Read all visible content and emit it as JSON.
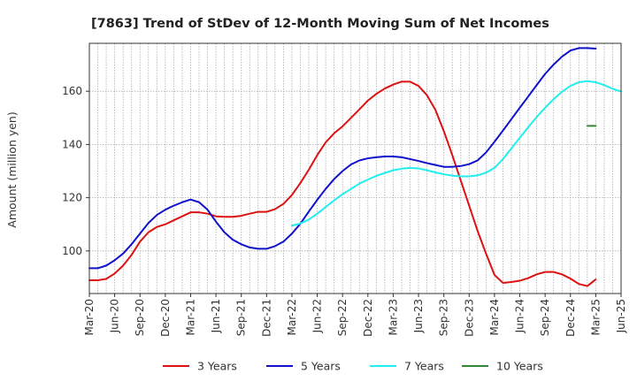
{
  "chart_data": {
    "type": "line",
    "title": "[7863]  Trend of StDev of 12-Month Moving Sum of Net Incomes",
    "xlabel": "",
    "ylabel": "Amount (million yen)",
    "ylim": [
      84,
      178
    ],
    "yticks": [
      100,
      120,
      140,
      160
    ],
    "xticks": [
      "Mar-20",
      "Jun-20",
      "Sep-20",
      "Dec-20",
      "Mar-21",
      "Jun-21",
      "Sep-21",
      "Dec-21",
      "Mar-22",
      "Jun-22",
      "Sep-22",
      "Dec-22",
      "Mar-23",
      "Jun-23",
      "Sep-23",
      "Dec-23",
      "Mar-24",
      "Jun-24",
      "Sep-24",
      "Dec-24",
      "Mar-25",
      "Jun-25"
    ],
    "x_range_months": [
      "2020-03",
      "2025-06"
    ],
    "grid": true,
    "legend_position": "bottom",
    "series": [
      {
        "name": "3 Years",
        "color": "#dd1111",
        "start": "2020-03",
        "values": [
          89,
          89,
          89.5,
          91.5,
          94.5,
          98.5,
          103.5,
          107,
          109,
          110,
          111.5,
          113,
          114.5,
          114.5,
          114,
          113,
          112.8,
          112.8,
          113.2,
          114,
          114.7,
          114.7,
          115.7,
          117.7,
          121,
          125.5,
          130.5,
          136,
          140.8,
          144.2,
          146.8,
          150,
          153.2,
          156.5,
          159,
          161,
          162.5,
          163.6,
          163.6,
          162,
          158.5,
          153,
          145,
          136,
          126.5,
          117,
          107.5,
          99,
          91,
          88,
          88.3,
          88.8,
          89.8,
          91.2,
          92.1,
          92.1,
          91.2,
          89.6,
          87.6,
          86.8,
          89.3
        ]
      },
      {
        "name": "5 Years",
        "color": "#1111cc",
        "start": "2020-03",
        "values": [
          93.5,
          93.5,
          94.5,
          96.5,
          99,
          102.5,
          106.5,
          110.5,
          113.5,
          115.5,
          117,
          118.3,
          119.3,
          118.3,
          115.5,
          111,
          107,
          104.2,
          102.5,
          101.3,
          100.8,
          100.8,
          101.8,
          103.5,
          106.5,
          110.2,
          114.8,
          119.2,
          123.3,
          127,
          130,
          132.5,
          134,
          134.8,
          135.2,
          135.5,
          135.5,
          135.2,
          134.5,
          133.8,
          133,
          132.3,
          131.6,
          131.6,
          131.9,
          132.6,
          134,
          137,
          141,
          145.2,
          149.5,
          153.8,
          158,
          162.3,
          166.5,
          170,
          173,
          175.3,
          176.2,
          176.2,
          176
        ]
      },
      {
        "name": "7 Years",
        "color": "#22eeee",
        "start": "2022-03",
        "values": [
          109.5,
          110.3,
          111.8,
          114,
          116.5,
          119,
          121.3,
          123.3,
          125.3,
          126.8,
          128.2,
          129.3,
          130.3,
          130.9,
          131.2,
          131,
          130.3,
          129.5,
          128.8,
          128.3,
          128,
          128,
          128.4,
          129.4,
          131.2,
          134.5,
          138.5,
          142.5,
          146.5,
          150.3,
          153.8,
          157,
          159.8,
          162,
          163.4,
          163.8,
          163.4,
          162.3,
          160.9,
          159.9
        ]
      },
      {
        "name": "10 Years",
        "color": "#338833",
        "start": "2025-02",
        "values": [
          147,
          147
        ]
      }
    ]
  }
}
